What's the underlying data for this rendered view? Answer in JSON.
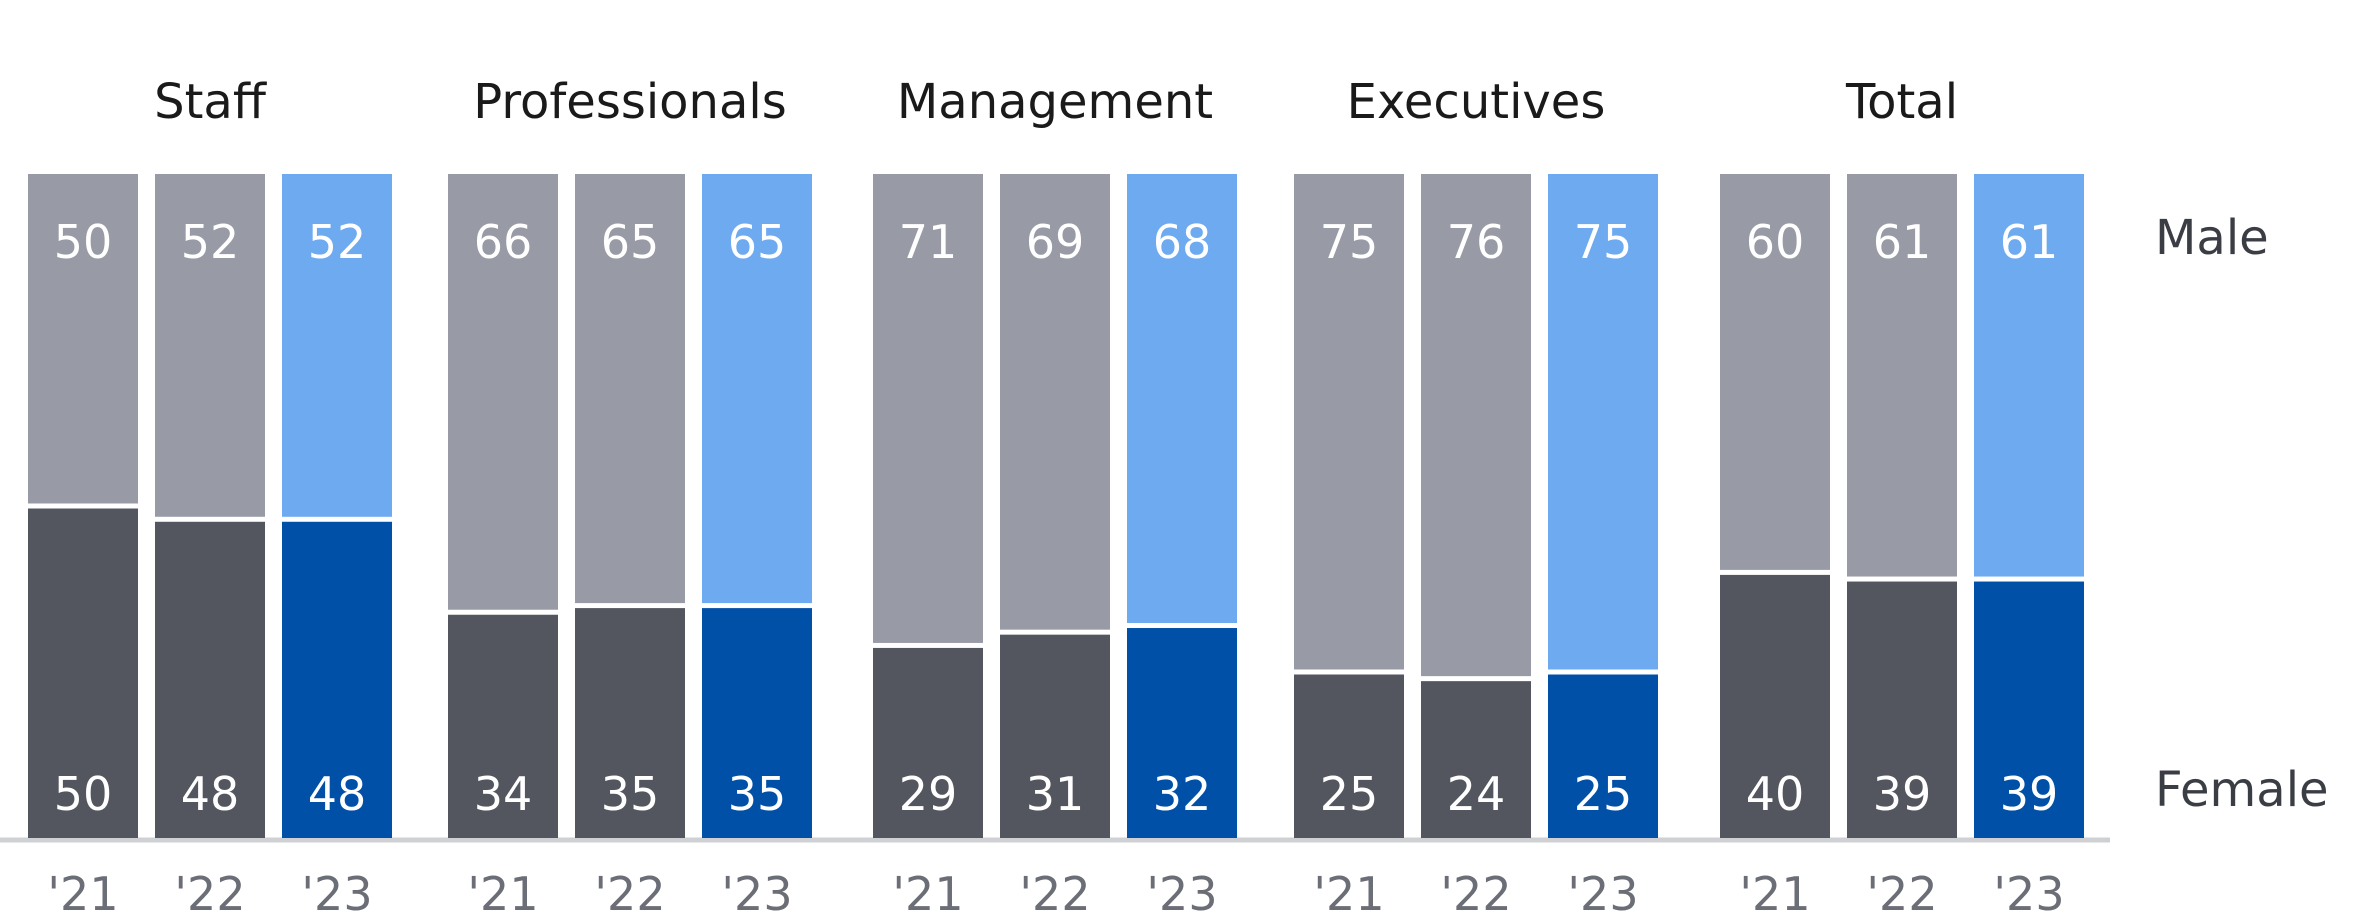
{
  "chart_data": {
    "type": "bar",
    "stacked": true,
    "percent": true,
    "groups": [
      {
        "name": "Staff",
        "years": [
          "'21",
          "'22",
          "'23"
        ],
        "female": [
          50,
          48,
          48
        ],
        "male": [
          50,
          52,
          52
        ]
      },
      {
        "name": "Professionals",
        "years": [
          "'21",
          "'22",
          "'23"
        ],
        "female": [
          34,
          35,
          35
        ],
        "male": [
          66,
          65,
          65
        ]
      },
      {
        "name": "Management",
        "years": [
          "'21",
          "'22",
          "'23"
        ],
        "female": [
          29,
          31,
          32
        ],
        "male": [
          71,
          69,
          68
        ]
      },
      {
        "name": "Executives",
        "years": [
          "'21",
          "'22",
          "'23"
        ],
        "female": [
          25,
          24,
          25
        ],
        "male": [
          75,
          76,
          75
        ]
      },
      {
        "name": "Total",
        "years": [
          "'21",
          "'22",
          "'23"
        ],
        "female": [
          40,
          39,
          39
        ],
        "male": [
          60,
          61,
          61
        ]
      }
    ],
    "series": [
      {
        "name": "Male"
      },
      {
        "name": "Female"
      }
    ],
    "ylim": [
      0,
      100
    ],
    "grid": false,
    "legend_position": "right",
    "colors": {
      "male_past": "#989ba6",
      "female_past": "#53565f",
      "male_current": "#6daaf0",
      "female_current": "#0050a8",
      "baseline": "#cfd0d4"
    }
  }
}
